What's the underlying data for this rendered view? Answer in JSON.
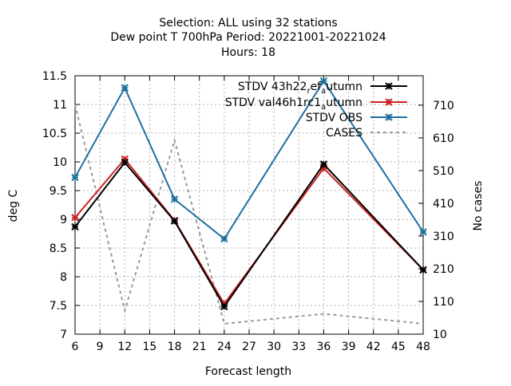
{
  "chart_data": {
    "type": "line",
    "title_lines": [
      "Selection: ALL using    32 stations",
      "Dew point T 700hPa   Period: 20221001-20221024",
      "Hours:  18"
    ],
    "xlabel": "Forecast length",
    "ylabel": "deg C",
    "y2label": "No cases",
    "xlim": [
      6,
      48
    ],
    "ylim": [
      7,
      11.5
    ],
    "y2lim": [
      10,
      800
    ],
    "x_ticks": [
      "6",
      "9",
      "12",
      "15",
      "18",
      "21",
      "24",
      "27",
      "30",
      "33",
      "36",
      "39",
      "42",
      "45",
      "48"
    ],
    "y_ticks": [
      "7",
      "7.5",
      "8",
      "8.5",
      "9",
      "9.5",
      "10",
      "10.5",
      "11",
      "11.5"
    ],
    "y2_ticks": [
      "10",
      "110",
      "210",
      "310",
      "410",
      "510",
      "610",
      "710"
    ],
    "grid": true,
    "legend_position": "top-right",
    "x": [
      6,
      12,
      18,
      24,
      36,
      48
    ],
    "series": [
      {
        "name_main": "STDV 43h22",
        "name_sub": "r",
        "name_main2": "ef",
        "name_sub2": "a",
        "name_tail": "utumn",
        "color": "#000000",
        "marker": "x",
        "axis": "y",
        "values": [
          8.87,
          9.99,
          8.97,
          7.48,
          9.96,
          8.12
        ]
      },
      {
        "name_main": "STDV val46h1rc1",
        "name_sub": "a",
        "name_tail": "utumn",
        "color": "#cc2222",
        "marker": "x",
        "axis": "y",
        "values": [
          9.03,
          10.05,
          8.98,
          7.53,
          9.89,
          8.12
        ]
      },
      {
        "name": "STDV OBS",
        "color": "#1f6f9f",
        "marker": "x",
        "axis": "y",
        "values": [
          9.73,
          11.29,
          9.35,
          8.66,
          11.41,
          8.78
        ]
      }
    ],
    "cases": {
      "name": "CASES",
      "color": "#999999",
      "axis": "y2",
      "x": [
        6,
        12,
        18,
        24,
        36,
        48
      ],
      "values": [
        712,
        82,
        603,
        42,
        72,
        42
      ]
    }
  }
}
